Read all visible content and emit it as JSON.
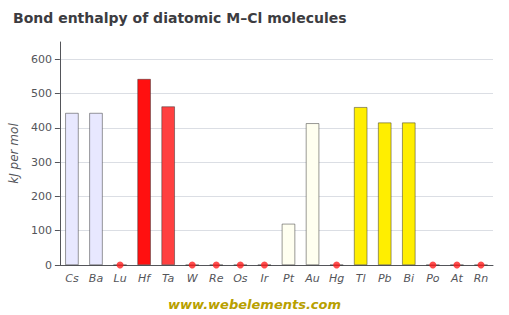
{
  "chart_data": {
    "type": "bar",
    "title": "Bond enthalpy of diatomic M–Cl molecules",
    "y_label": "kJ per mol",
    "annotations": [
      "www.webelements.com"
    ],
    "categories": [
      "Cs",
      "Ba",
      "Lu",
      "Hf",
      "Ta",
      "W",
      "Re",
      "Os",
      "Ir",
      "Pt",
      "Au",
      "Hg",
      "Tl",
      "Pb",
      "Bi",
      "Po",
      "At",
      "Rn"
    ],
    "values": [
      443,
      443,
      0,
      542,
      462,
      0,
      0,
      0,
      0,
      120,
      413,
      0,
      460,
      415,
      415,
      0,
      0,
      0
    ],
    "colors": [
      "#e8e8ff",
      "#e8e8ff",
      "#ff2020",
      "#ff1010",
      "#ff4040",
      "#ff2020",
      "#ff2020",
      "#ff2020",
      "#ff2020",
      "#fffff0",
      "#fffff0",
      "#ff2020",
      "#ffee00",
      "#ffee00",
      "#ffee00",
      "#ff2020",
      "#ff2020",
      "#ff2020"
    ],
    "ylim": [
      0,
      650
    ],
    "yticks": [
      0,
      100,
      200,
      300,
      400,
      500,
      600
    ],
    "grid": true
  }
}
